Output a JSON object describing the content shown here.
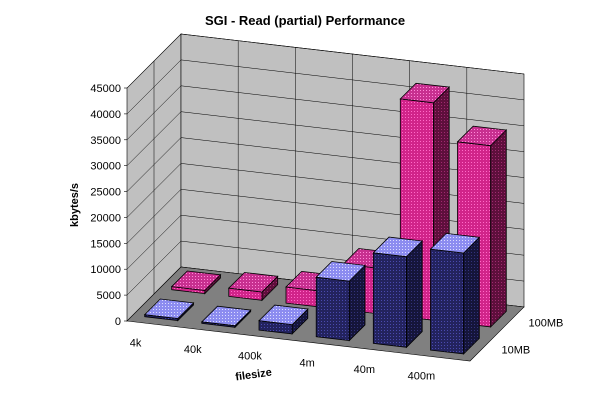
{
  "chart_data": {
    "type": "bar",
    "subtype": "3d-clustered-depth",
    "title": "SGI - Read (partial) Performance",
    "xlabel": "filesize",
    "ylabel": "kbytes/s",
    "ylim": [
      0,
      45000
    ],
    "yticks": [
      0,
      5000,
      10000,
      15000,
      20000,
      25000,
      30000,
      35000,
      40000,
      45000
    ],
    "categories": [
      "4k",
      "40k",
      "400k",
      "4m",
      "40m",
      "400m"
    ],
    "grid": true,
    "legend": "none",
    "series": [
      {
        "name": "10MB",
        "values": [
          400,
          300,
          1800,
          11500,
          17500,
          19500
        ],
        "color": "#3b3b9a",
        "top_color": "#a6a6ff"
      },
      {
        "name": "100MB",
        "values": [
          600,
          1600,
          3100,
          8800,
          42000,
          35000
        ],
        "color": "#b0307a",
        "top_color": "#ff66cc"
      }
    ]
  }
}
